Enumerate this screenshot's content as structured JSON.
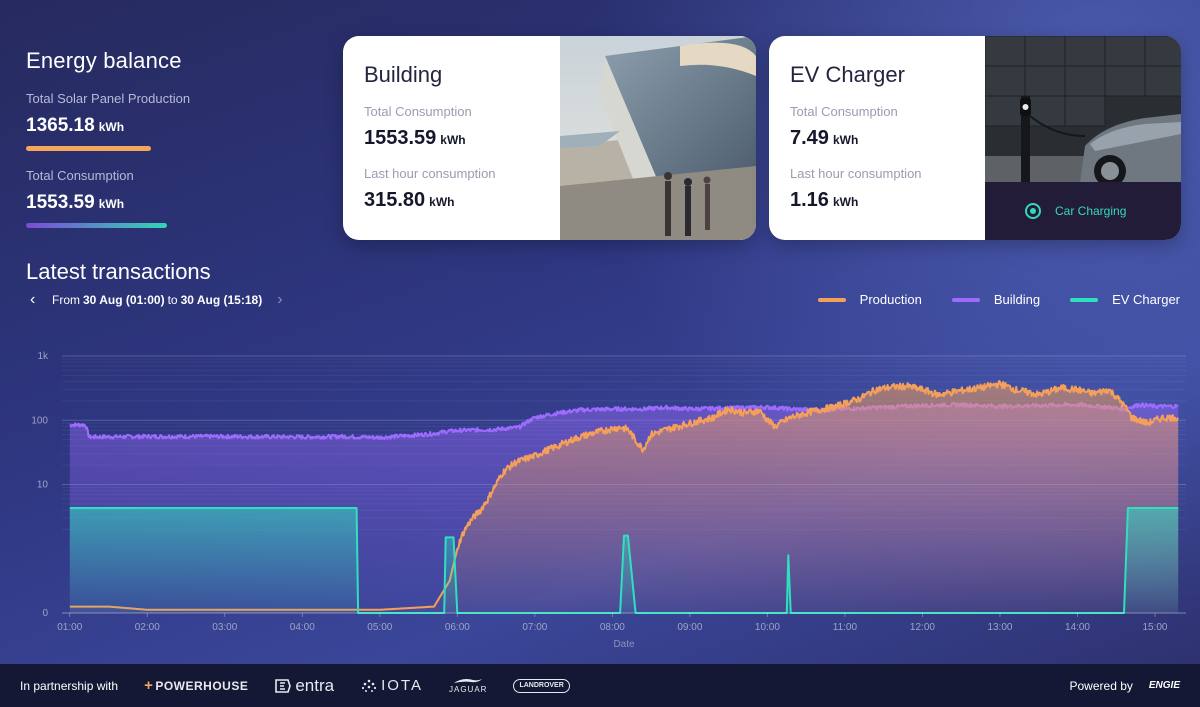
{
  "balance": {
    "title": "Energy balance",
    "solar_label": "Total Solar Panel Production",
    "solar_value": "1365.18",
    "solar_unit": "kWh",
    "consumption_label": "Total Consumption",
    "consumption_value": "1553.59",
    "consumption_unit": "kWh"
  },
  "building": {
    "title": "Building",
    "total_label": "Total Consumption",
    "total_value": "1553.59",
    "total_unit": "kWh",
    "hour_label": "Last hour consumption",
    "hour_value": "315.80",
    "hour_unit": "kWh"
  },
  "ev": {
    "title": "EV Charger",
    "total_label": "Total Consumption",
    "total_value": "7.49",
    "total_unit": "kWh",
    "hour_label": "Last hour consumption",
    "hour_value": "1.16",
    "hour_unit": "kWh",
    "status": "Car Charging"
  },
  "transactions": {
    "title": "Latest transactions",
    "from_word": "From",
    "from_date": "30 Aug (01:00)",
    "to_word": "to",
    "to_date": "30 Aug (15:18)"
  },
  "colors": {
    "production": "#f5a05a",
    "building": "#9d6cff",
    "ev": "#2fe0bf"
  },
  "chart_data": {
    "type": "line",
    "xlabel": "Date",
    "ylabel": "",
    "yscale": "symlog",
    "ylim": [
      0,
      1000
    ],
    "ytick_labels": [
      "0",
      "10",
      "100",
      "1k"
    ],
    "ytick_values": [
      0,
      10,
      100,
      1000
    ],
    "x_tick_labels": [
      "01:00",
      "02:00",
      "03:00",
      "04:00",
      "05:00",
      "06:00",
      "07:00",
      "08:00",
      "09:00",
      "10:00",
      "11:00",
      "12:00",
      "13:00",
      "14:00",
      "15:00"
    ],
    "x_range_hours": [
      0.9,
      15.4
    ],
    "legend_position": "top-right",
    "series": [
      {
        "name": "Production",
        "points": [
          [
            1.0,
            0.1
          ],
          [
            1.5,
            0.1
          ],
          [
            2.0,
            0.05
          ],
          [
            3.0,
            0.05
          ],
          [
            4.0,
            0.05
          ],
          [
            5.0,
            0.05
          ],
          [
            5.7,
            0.1
          ],
          [
            5.9,
            0.5
          ],
          [
            6.0,
            1
          ],
          [
            6.1,
            2
          ],
          [
            6.2,
            3
          ],
          [
            6.3,
            4
          ],
          [
            6.4,
            6
          ],
          [
            6.5,
            10
          ],
          [
            6.6,
            16
          ],
          [
            6.75,
            22
          ],
          [
            7.0,
            28
          ],
          [
            7.3,
            40
          ],
          [
            7.6,
            56
          ],
          [
            7.9,
            70
          ],
          [
            8.1,
            78
          ],
          [
            8.2,
            72
          ],
          [
            8.3,
            48
          ],
          [
            8.4,
            35
          ],
          [
            8.5,
            60
          ],
          [
            8.7,
            72
          ],
          [
            9.0,
            90
          ],
          [
            9.3,
            110
          ],
          [
            9.5,
            150
          ],
          [
            9.7,
            130
          ],
          [
            9.9,
            140
          ],
          [
            10.0,
            100
          ],
          [
            10.1,
            80
          ],
          [
            10.3,
            110
          ],
          [
            10.6,
            140
          ],
          [
            10.9,
            165
          ],
          [
            11.2,
            220
          ],
          [
            11.4,
            300
          ],
          [
            11.6,
            330
          ],
          [
            11.8,
            340
          ],
          [
            12.0,
            300
          ],
          [
            12.2,
            250
          ],
          [
            12.5,
            290
          ],
          [
            12.8,
            330
          ],
          [
            13.0,
            370
          ],
          [
            13.2,
            300
          ],
          [
            13.5,
            250
          ],
          [
            13.8,
            320
          ],
          [
            14.0,
            300
          ],
          [
            14.2,
            260
          ],
          [
            14.4,
            300
          ],
          [
            14.55,
            200
          ],
          [
            14.7,
            110
          ],
          [
            14.9,
            90
          ],
          [
            15.1,
            110
          ],
          [
            15.3,
            110
          ]
        ]
      },
      {
        "name": "Building",
        "points": [
          [
            1.0,
            85
          ],
          [
            1.2,
            85
          ],
          [
            1.25,
            55
          ],
          [
            2.0,
            56
          ],
          [
            3.0,
            56
          ],
          [
            4.0,
            55
          ],
          [
            4.5,
            56
          ],
          [
            5.0,
            54
          ],
          [
            5.4,
            58
          ],
          [
            5.7,
            62
          ],
          [
            5.9,
            68
          ],
          [
            6.1,
            70
          ],
          [
            6.5,
            72
          ],
          [
            6.8,
            78
          ],
          [
            7.0,
            110
          ],
          [
            7.3,
            130
          ],
          [
            7.6,
            145
          ],
          [
            8.0,
            150
          ],
          [
            8.4,
            150
          ],
          [
            8.7,
            158
          ],
          [
            9.0,
            150
          ],
          [
            9.5,
            155
          ],
          [
            10.0,
            160
          ],
          [
            10.3,
            150
          ],
          [
            10.6,
            145
          ],
          [
            11.0,
            150
          ],
          [
            11.5,
            160
          ],
          [
            12.0,
            170
          ],
          [
            12.5,
            175
          ],
          [
            13.0,
            165
          ],
          [
            13.5,
            170
          ],
          [
            14.0,
            175
          ],
          [
            14.4,
            160
          ],
          [
            14.6,
            150
          ],
          [
            14.8,
            175
          ],
          [
            15.0,
            165
          ],
          [
            15.3,
            165
          ]
        ]
      },
      {
        "name": "EV Charger",
        "points": [
          [
            1.0,
            4.3
          ],
          [
            4.7,
            4.3
          ],
          [
            4.72,
            0
          ],
          [
            5.83,
            0
          ],
          [
            5.85,
            1.5
          ],
          [
            5.95,
            1.5
          ],
          [
            6.0,
            0
          ],
          [
            8.1,
            0
          ],
          [
            8.15,
            1.6
          ],
          [
            8.2,
            1.6
          ],
          [
            8.3,
            0
          ],
          [
            10.25,
            0
          ],
          [
            10.27,
            0.9
          ],
          [
            10.3,
            0
          ],
          [
            14.6,
            0
          ],
          [
            14.65,
            4.3
          ],
          [
            15.3,
            4.3
          ]
        ]
      }
    ]
  },
  "footer": {
    "partnership": "In partnership with",
    "partner_powerhouse": "POWERHOUSE",
    "partner_entra": "entra",
    "partner_iota": "IOTA",
    "partner_jaguar": "JAGUAR",
    "partner_landrover_top": "LAND",
    "partner_landrover_bottom": "ROVER",
    "powered_by": "Powered by",
    "engie": "ENGIE"
  }
}
